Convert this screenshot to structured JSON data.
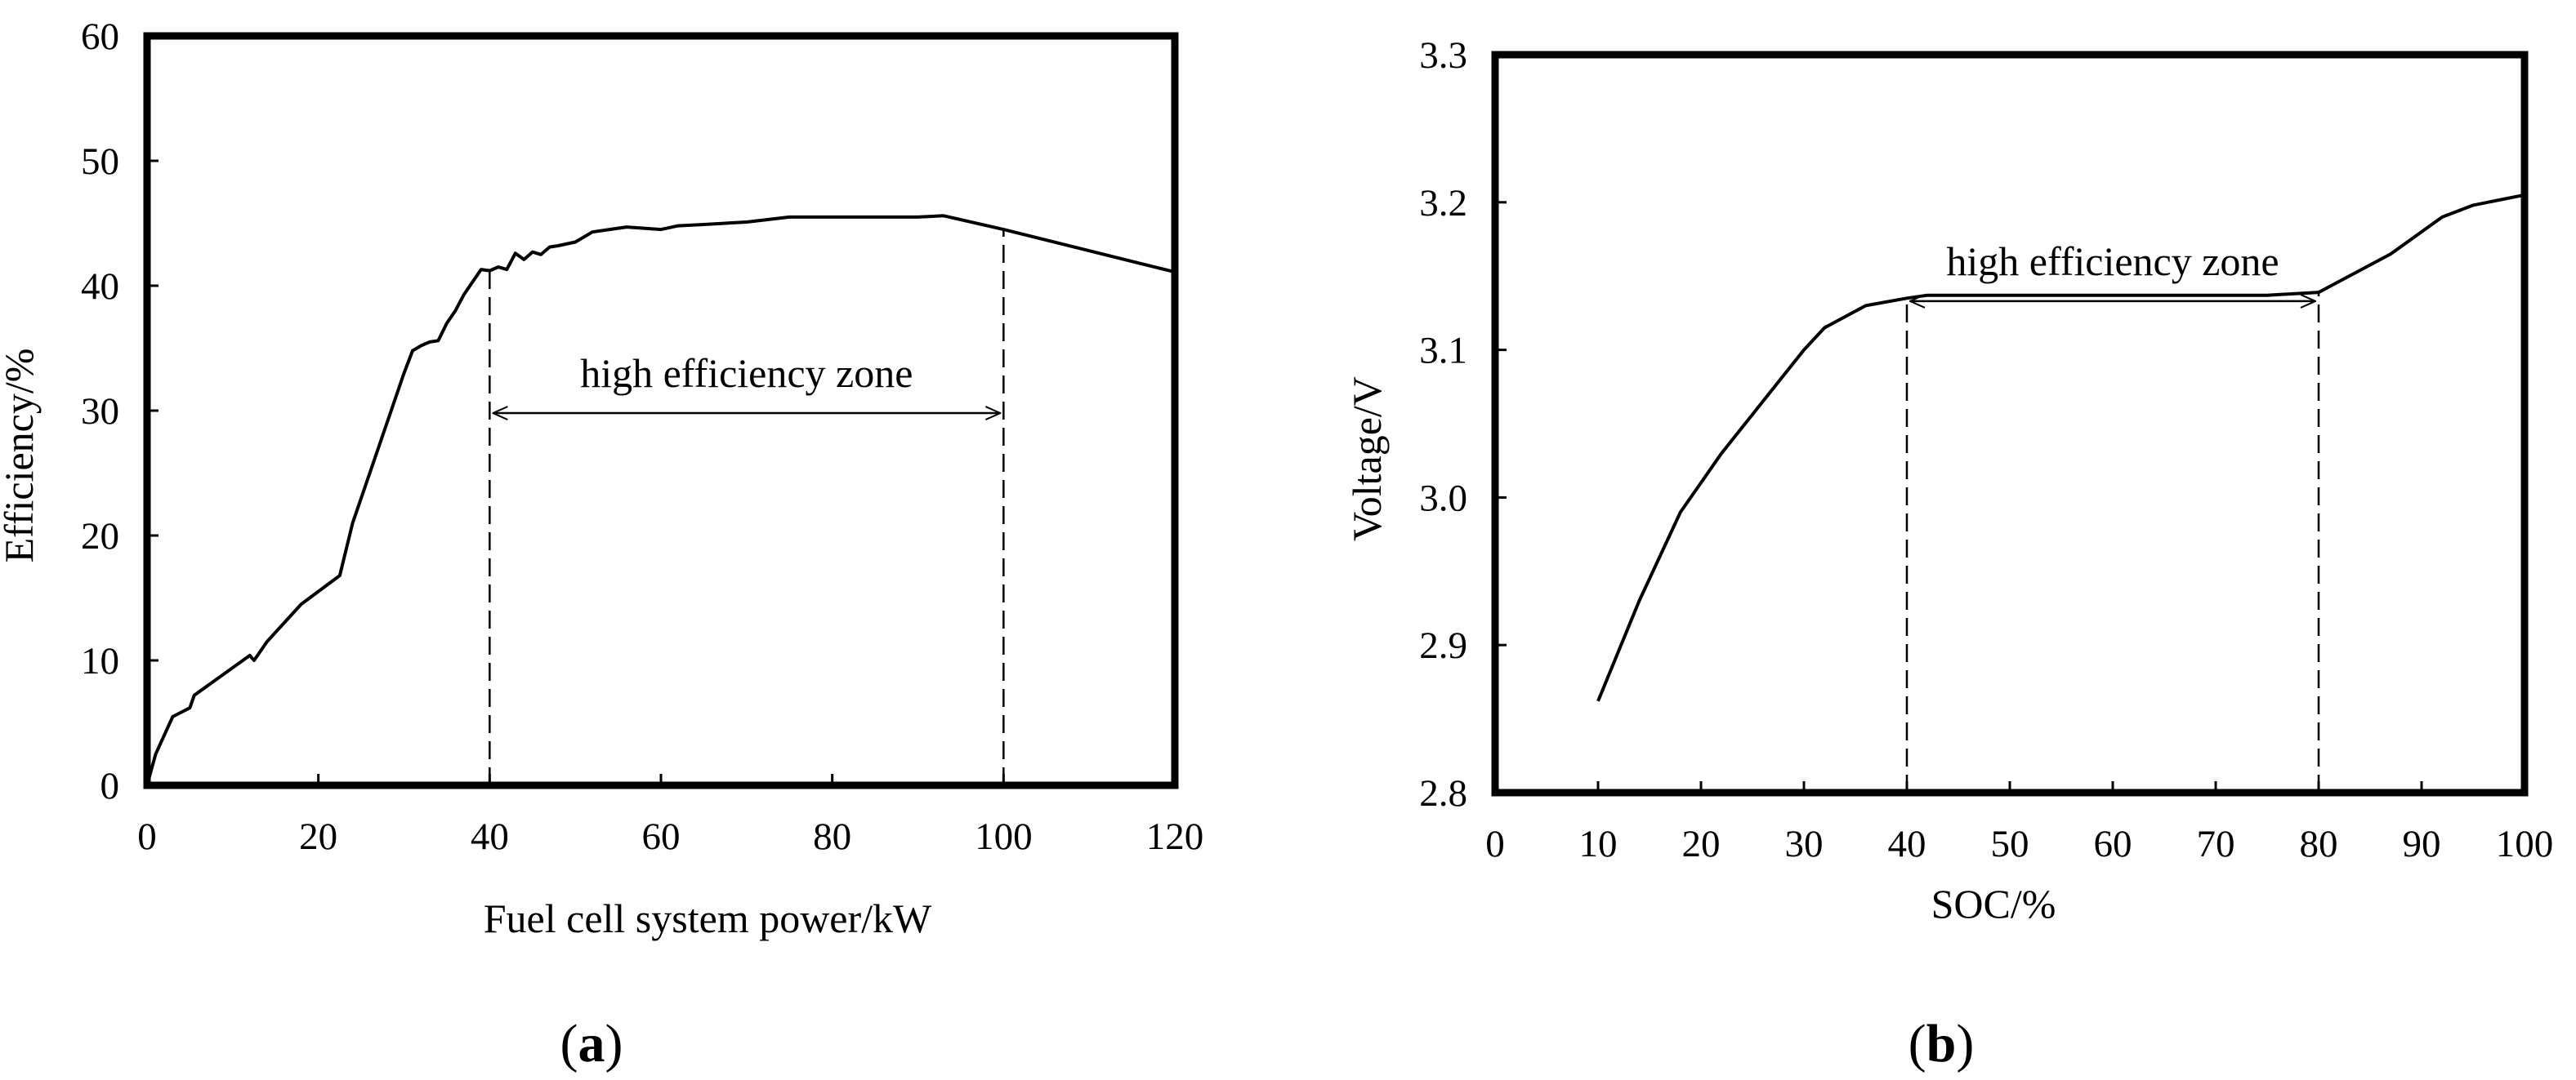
{
  "chart_data": [
    {
      "type": "line",
      "panel_label_open": "(",
      "panel_label": "a",
      "panel_label_close": ")",
      "xlabel": "Fuel cell system power/kW",
      "ylabel": "Efficiency/%",
      "xlim": [
        0,
        120
      ],
      "ylim": [
        0,
        60
      ],
      "x_ticks": [
        0,
        20,
        40,
        60,
        80,
        100,
        120
      ],
      "y_ticks": [
        0,
        10,
        20,
        30,
        40,
        50,
        60
      ],
      "grid": false,
      "series": [
        {
          "name": "Efficiency",
          "x": [
            0,
            1,
            3,
            5,
            5.5,
            12,
            12.5,
            14,
            18,
            22.5,
            24,
            27,
            30,
            31,
            32,
            33,
            34,
            35,
            36,
            37,
            38,
            39,
            40,
            41,
            42,
            43,
            44,
            45,
            46,
            47,
            48,
            50,
            52,
            54,
            56,
            58,
            60,
            62,
            65,
            70,
            75,
            80,
            85,
            90,
            93,
            100,
            120
          ],
          "y": [
            0,
            2.5,
            5.5,
            6.2,
            7.2,
            10.4,
            10.0,
            11.5,
            14.5,
            16.8,
            21,
            27,
            33,
            34.8,
            35.2,
            35.5,
            35.6,
            37,
            38,
            39.3,
            40.3,
            41.3,
            41.2,
            41.5,
            41.3,
            42.6,
            42.1,
            42.7,
            42.5,
            43.1,
            43.2,
            43.5,
            44.3,
            44.5,
            44.7,
            44.6,
            44.5,
            44.8,
            44.9,
            45.1,
            45.5,
            45.5,
            45.5,
            45.5,
            45.6,
            44.5,
            41.1
          ]
        }
      ],
      "zone": {
        "label": "high efficiency zone",
        "from": 40,
        "to": 100,
        "arrow_y": 29.8
      }
    },
    {
      "type": "line",
      "panel_label_open": "(",
      "panel_label": "b",
      "panel_label_close": ")",
      "xlabel": "SOC/%",
      "ylabel": "Voltage/V",
      "xlim": [
        0,
        100
      ],
      "ylim": [
        2.8,
        3.3
      ],
      "x_ticks": [
        0,
        10,
        20,
        30,
        40,
        50,
        60,
        70,
        80,
        90,
        100
      ],
      "y_ticks": [
        2.8,
        2.9,
        3.0,
        3.1,
        3.2,
        3.3
      ],
      "y_tick_labels": [
        "2.8",
        "2.9",
        "3.0",
        "3.1",
        "3.2",
        "3.3"
      ],
      "grid": false,
      "series": [
        {
          "name": "Voltage",
          "x": [
            10,
            14,
            18,
            22,
            26,
            30,
            32,
            36,
            40,
            42,
            50,
            60,
            70,
            75,
            80,
            87,
            92,
            95,
            100
          ],
          "y": [
            2.862,
            2.93,
            2.99,
            3.03,
            3.065,
            3.1,
            3.115,
            3.13,
            3.135,
            3.137,
            3.137,
            3.137,
            3.137,
            3.137,
            3.139,
            3.165,
            3.19,
            3.198,
            3.205
          ]
        }
      ],
      "zone": {
        "label": "high efficiency zone",
        "from": 40,
        "to": 80,
        "arrow_y": 3.133
      }
    }
  ]
}
